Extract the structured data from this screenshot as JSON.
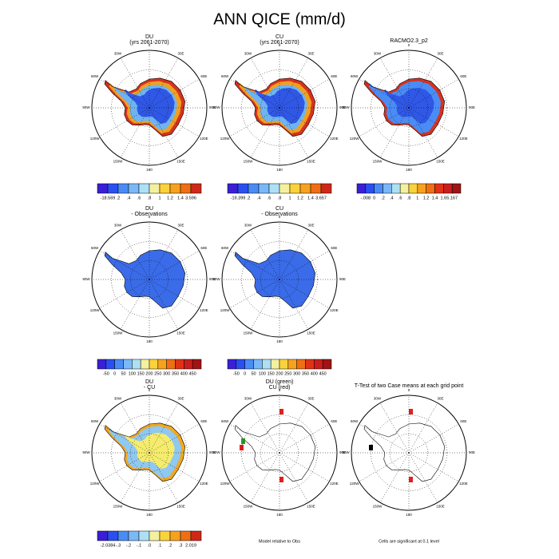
{
  "title": "ANN QICE (mm/d)",
  "meridian_labels": [
    "0",
    "30E",
    "60E",
    "90E",
    "120E",
    "150E",
    "180",
    "150W",
    "120W",
    "90W",
    "60W",
    "30W"
  ],
  "panels": [
    {
      "title": "DU",
      "subtitle": "(yrs 2061-2070)",
      "map_colors": [
        "#d8321e",
        "#f0a020",
        "#6fb4f2",
        "#3058e6"
      ],
      "colorbar": {
        "labels": [
          "-18.569",
          ".2",
          ".4",
          ".6",
          ".8",
          "1",
          "1.2",
          "1.4",
          "3.596"
        ],
        "colors": [
          "#3a1fd6",
          "#2a4ff0",
          "#4a8cf5",
          "#7ab8f7",
          "#aee0f5",
          "#f5f0a0",
          "#fad23c",
          "#f7a21e",
          "#f06e14",
          "#d02818"
        ]
      }
    },
    {
      "title": "CU",
      "subtitle": "(yrs 2061-2070)",
      "map_colors": [
        "#d8321e",
        "#f0a020",
        "#6fb4f2",
        "#3058e6"
      ],
      "colorbar": {
        "labels": [
          "-19.399",
          ".2",
          ".4",
          ".6",
          ".8",
          "1",
          "1.2",
          "1.4",
          "3.657"
        ],
        "colors": [
          "#3a1fd6",
          "#2a4ff0",
          "#4a8cf5",
          "#7ab8f7",
          "#aee0f5",
          "#f5f0a0",
          "#fad23c",
          "#f7a21e",
          "#f06e14",
          "#d02818"
        ]
      }
    },
    {
      "title": "RACMO2.3_p2",
      "map_colors": [
        "#d8321e",
        "#4a8cf5",
        "#4a8cf5",
        "#3058e6"
      ],
      "colorbar": {
        "labels": [
          "-.008",
          "0",
          ".2",
          ".4",
          ".6",
          ".8",
          "1",
          "1.2",
          "1.4",
          "1.6",
          "5.167"
        ],
        "colors": [
          "#3a1fd6",
          "#2a4ff0",
          "#4a8cf5",
          "#7ab8f7",
          "#aee0f5",
          "#f5f0a0",
          "#fad23c",
          "#f7a21e",
          "#f06e14",
          "#e03214",
          "#c81e1e",
          "#a01414"
        ]
      }
    },
    {
      "title": "DU",
      "subtitle": "- Observations",
      "map_colors": [
        "#3a6be8"
      ],
      "colorbar": {
        "labels": [
          "-50",
          "0",
          "50",
          "100",
          "150",
          "200",
          "250",
          "300",
          "350",
          "400",
          "450"
        ],
        "colors": [
          "#3a1fd6",
          "#2a4ff0",
          "#4a8cf5",
          "#7ab8f7",
          "#aee0f5",
          "#f5f0a0",
          "#fad23c",
          "#f7a21e",
          "#f06e14",
          "#e03214",
          "#c81e1e",
          "#a01414"
        ]
      }
    },
    {
      "title": "CU",
      "subtitle": "- Observations",
      "map_colors": [
        "#3a6be8"
      ],
      "colorbar": {
        "labels": [
          "-50",
          "0",
          "50",
          "100",
          "150",
          "200",
          "250",
          "300",
          "350",
          "400",
          "450"
        ],
        "colors": [
          "#3a1fd6",
          "#2a4ff0",
          "#4a8cf5",
          "#7ab8f7",
          "#aee0f5",
          "#f5f0a0",
          "#fad23c",
          "#f7a21e",
          "#f06e14",
          "#e03214",
          "#c81e1e",
          "#a01414"
        ]
      }
    },
    null,
    {
      "title": "DU",
      "subtitle": "- CU",
      "map_colors": [
        "#f2a81e",
        "#8fc8f0",
        "#8fc8f0",
        "#f5ec6e"
      ],
      "colorbar": {
        "labels": [
          "-2.0384",
          "-.3",
          "-.2",
          "-.1",
          ".0",
          ".1",
          ".2",
          ".3",
          "2.019"
        ],
        "colors": [
          "#3a1fd6",
          "#2a4ff0",
          "#4a8cf5",
          "#7ab8f7",
          "#aee0f5",
          "#f5f0a0",
          "#fad23c",
          "#f7a21e",
          "#f06e14",
          "#d02818"
        ]
      }
    },
    {
      "title": "DU (green)",
      "subtitle": "CU (red)",
      "map_colors": [
        "#ffffff"
      ],
      "footer": "Model relative to Obs"
    },
    {
      "title": "T-Test of two Case means at each grid point",
      "map_colors": [
        "#ffffff"
      ],
      "footer": "Cells are significant at 0.1 level"
    }
  ]
}
